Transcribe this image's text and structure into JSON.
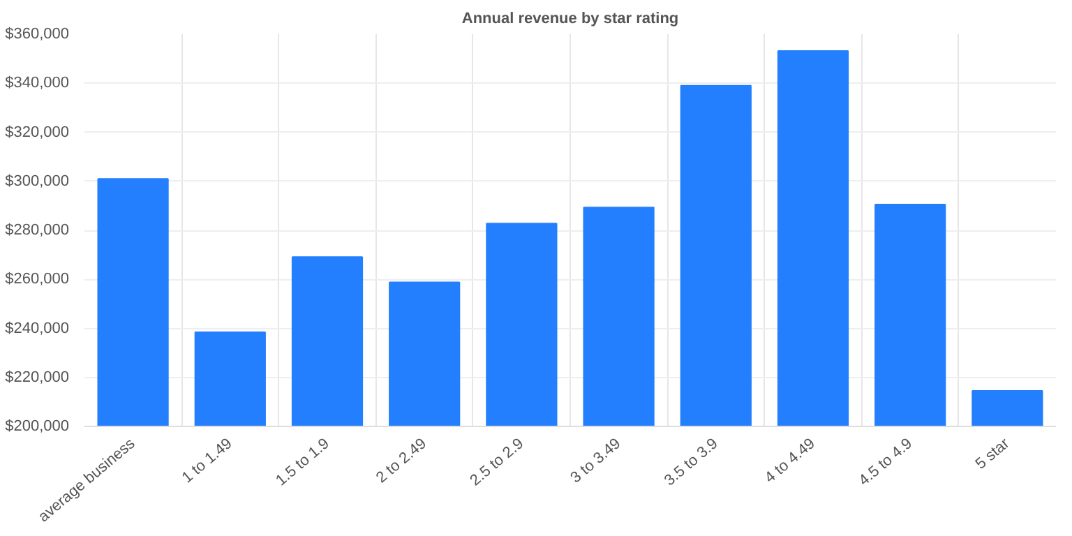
{
  "chart_data": {
    "type": "bar",
    "title": "Annual revenue by star rating",
    "categories": [
      "average business",
      "1 to 1.49",
      "1.5 to 1.9",
      "2 to 2.49",
      "2.5 to 2.9",
      "3 to 3.49",
      "3.5 to 3.9",
      "4 to 4.49",
      "4.5 to 4.9",
      "5 star"
    ],
    "values": [
      301000,
      238400,
      269100,
      258800,
      282800,
      289300,
      339000,
      353200,
      290500,
      214500
    ],
    "color": "#247ffe",
    "ylim": [
      200000,
      360000
    ],
    "yticks": [
      {
        "value": 200000,
        "label": "$200,000"
      },
      {
        "value": 220000,
        "label": "$220,000"
      },
      {
        "value": 240000,
        "label": "$240,000"
      },
      {
        "value": 260000,
        "label": "$260,000"
      },
      {
        "value": 280000,
        "label": "$280,000"
      },
      {
        "value": 300000,
        "label": "$300,000"
      },
      {
        "value": 320000,
        "label": "$320,000"
      },
      {
        "value": 340000,
        "label": "$340,000"
      },
      {
        "value": 360000,
        "label": "$360,000"
      }
    ],
    "grid": true
  }
}
